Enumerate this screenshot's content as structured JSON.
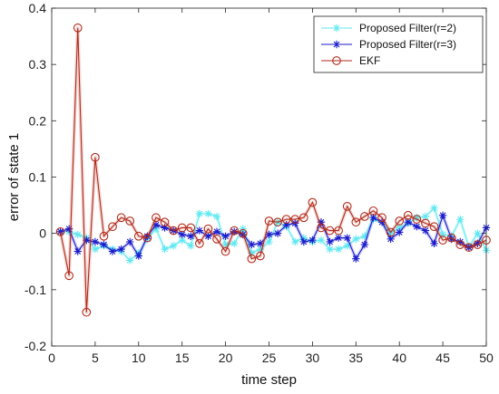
{
  "chart_data": {
    "type": "line",
    "xlabel": "time step",
    "ylabel": "error of state 1",
    "xlim": [
      0,
      50
    ],
    "ylim": [
      -0.2,
      0.4
    ],
    "xticks": [
      0,
      5,
      10,
      15,
      20,
      25,
      30,
      35,
      40,
      45,
      50
    ],
    "yticks": [
      -0.2,
      -0.1,
      0,
      0.1,
      0.2,
      0.3,
      0.4
    ],
    "xtick_labels": [
      "0",
      "5",
      "10",
      "15",
      "20",
      "25",
      "30",
      "35",
      "40",
      "45",
      "50"
    ],
    "ytick_labels": [
      "-0.2",
      "-0.1",
      "0",
      "0.1",
      "0.2",
      "0.3",
      "0.4"
    ],
    "grid": false,
    "legend": "top-right",
    "x": [
      1,
      2,
      3,
      4,
      5,
      6,
      7,
      8,
      9,
      10,
      11,
      12,
      13,
      14,
      15,
      16,
      17,
      18,
      19,
      20,
      21,
      22,
      23,
      24,
      25,
      26,
      27,
      28,
      29,
      30,
      31,
      32,
      33,
      34,
      35,
      36,
      37,
      38,
      39,
      40,
      41,
      42,
      43,
      44,
      45,
      46,
      47,
      48,
      49,
      50
    ],
    "series": [
      {
        "name": "Proposed Filter(r=2)",
        "color": "#5fe8f0",
        "marker": "asterisk",
        "values": [
          0.003,
          0.003,
          -0.002,
          -0.008,
          -0.028,
          -0.022,
          -0.028,
          -0.032,
          -0.048,
          -0.035,
          -0.01,
          0.008,
          -0.028,
          -0.022,
          -0.012,
          -0.022,
          0.035,
          0.035,
          0.03,
          -0.02,
          -0.018,
          0.008,
          -0.035,
          -0.028,
          -0.015,
          0.02,
          0.012,
          -0.015,
          -0.008,
          -0.015,
          -0.012,
          -0.028,
          -0.028,
          -0.022,
          -0.01,
          -0.005,
          0.025,
          0.02,
          0.0,
          0.01,
          0.018,
          0.028,
          0.03,
          0.045,
          -0.002,
          -0.005,
          0.025,
          -0.025,
          0.0,
          -0.03
        ]
      },
      {
        "name": "Proposed Filter(r=3)",
        "color": "#1a1acc",
        "marker": "asterisk",
        "values": [
          0.003,
          0.008,
          -0.032,
          -0.012,
          -0.015,
          -0.02,
          -0.032,
          -0.028,
          -0.015,
          -0.04,
          -0.005,
          0.015,
          0.01,
          0.005,
          -0.002,
          -0.005,
          0.005,
          -0.005,
          0.003,
          -0.005,
          0.003,
          -0.002,
          -0.02,
          -0.018,
          -0.002,
          0.0,
          0.015,
          0.018,
          -0.015,
          -0.012,
          0.02,
          -0.015,
          -0.008,
          -0.008,
          -0.045,
          -0.02,
          0.028,
          0.02,
          -0.01,
          0.002,
          0.02,
          0.012,
          0.005,
          -0.018,
          0.032,
          -0.01,
          -0.015,
          -0.025,
          -0.018,
          0.01
        ]
      },
      {
        "name": "EKF",
        "color": "#b22a1a",
        "marker": "circle",
        "values": [
          0.003,
          -0.075,
          0.365,
          -0.14,
          0.135,
          -0.005,
          0.012,
          0.028,
          0.022,
          -0.005,
          -0.008,
          0.028,
          0.02,
          0.005,
          0.01,
          0.01,
          -0.018,
          0.008,
          -0.01,
          -0.032,
          0.005,
          0.0,
          -0.045,
          -0.04,
          0.022,
          0.02,
          0.025,
          0.025,
          0.028,
          0.055,
          0.01,
          0.005,
          0.005,
          0.048,
          0.02,
          0.03,
          0.04,
          0.028,
          0.002,
          0.022,
          0.032,
          0.025,
          0.018,
          0.012,
          -0.012,
          -0.008,
          -0.02,
          -0.025,
          -0.02,
          -0.012
        ]
      }
    ]
  }
}
